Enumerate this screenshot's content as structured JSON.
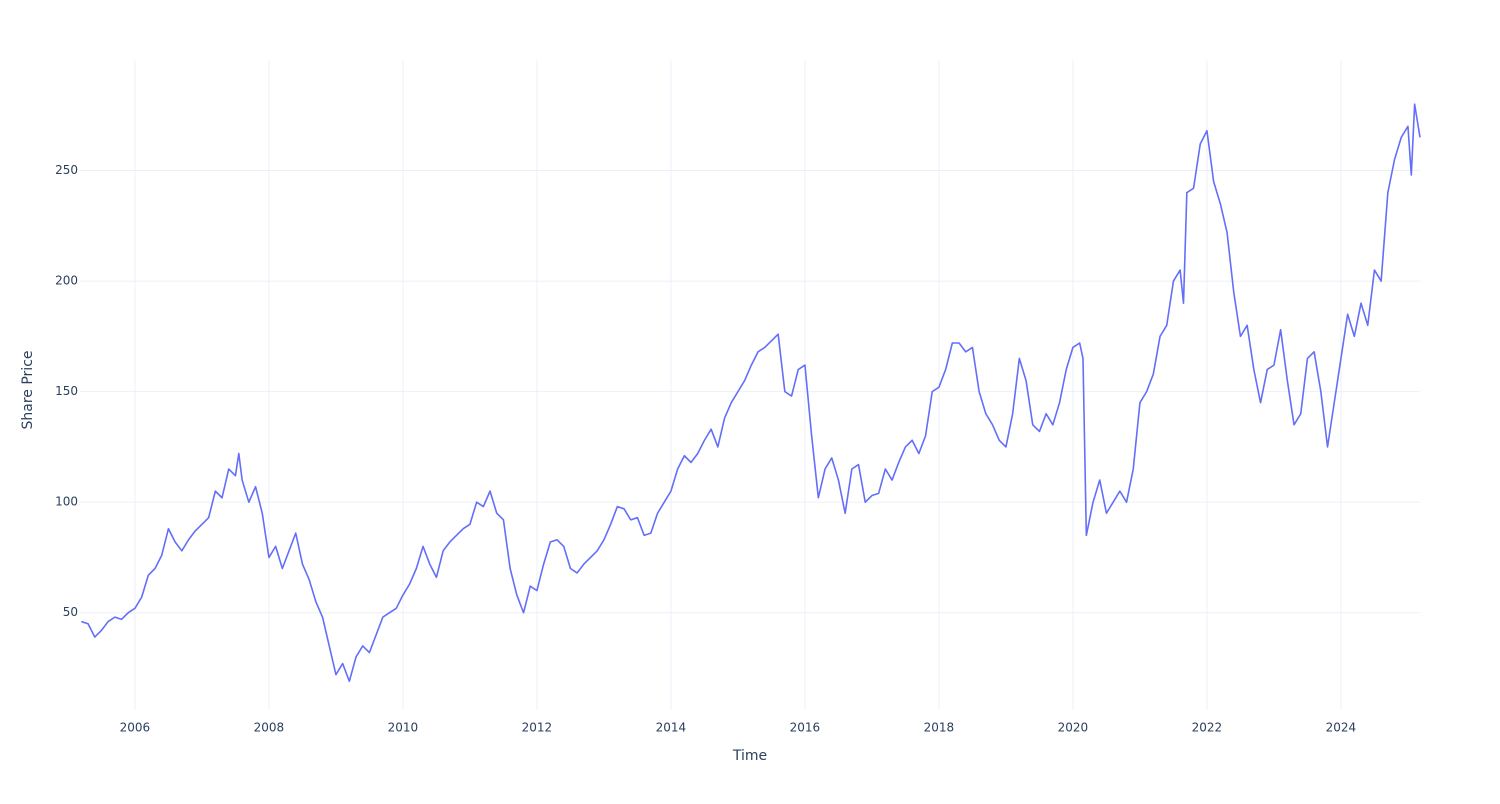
{
  "chart_data": {
    "type": "line",
    "x_label": "Time",
    "y_label": "Share Price",
    "series": [
      {
        "color": "#636efa",
        "x": [
          2005.2,
          2005.3,
          2005.4,
          2005.5,
          2005.6,
          2005.7,
          2005.8,
          2005.9,
          2006.0,
          2006.1,
          2006.2,
          2006.3,
          2006.4,
          2006.5,
          2006.6,
          2006.7,
          2006.8,
          2006.9,
          2007.0,
          2007.1,
          2007.2,
          2007.3,
          2007.4,
          2007.5,
          2007.55,
          2007.6,
          2007.7,
          2007.8,
          2007.9,
          2008.0,
          2008.1,
          2008.2,
          2008.3,
          2008.4,
          2008.5,
          2008.6,
          2008.7,
          2008.8,
          2008.9,
          2009.0,
          2009.1,
          2009.2,
          2009.3,
          2009.4,
          2009.5,
          2009.6,
          2009.7,
          2009.8,
          2009.9,
          2010.0,
          2010.1,
          2010.2,
          2010.3,
          2010.4,
          2010.5,
          2010.6,
          2010.7,
          2010.8,
          2010.9,
          2011.0,
          2011.1,
          2011.2,
          2011.3,
          2011.4,
          2011.5,
          2011.6,
          2011.7,
          2011.8,
          2011.9,
          2012.0,
          2012.1,
          2012.2,
          2012.3,
          2012.4,
          2012.5,
          2012.6,
          2012.7,
          2012.8,
          2012.9,
          2013.0,
          2013.1,
          2013.2,
          2013.3,
          2013.4,
          2013.5,
          2013.6,
          2013.7,
          2013.8,
          2013.9,
          2014.0,
          2014.1,
          2014.2,
          2014.3,
          2014.4,
          2014.5,
          2014.6,
          2014.7,
          2014.8,
          2014.9,
          2015.0,
          2015.1,
          2015.2,
          2015.3,
          2015.4,
          2015.5,
          2015.6,
          2015.7,
          2015.8,
          2015.9,
          2016.0,
          2016.1,
          2016.2,
          2016.3,
          2016.4,
          2016.5,
          2016.6,
          2016.7,
          2016.8,
          2016.9,
          2017.0,
          2017.1,
          2017.2,
          2017.3,
          2017.4,
          2017.5,
          2017.6,
          2017.7,
          2017.8,
          2017.9,
          2018.0,
          2018.1,
          2018.2,
          2018.3,
          2018.4,
          2018.5,
          2018.6,
          2018.7,
          2018.8,
          2018.9,
          2019.0,
          2019.1,
          2019.2,
          2019.3,
          2019.4,
          2019.5,
          2019.6,
          2019.7,
          2019.8,
          2019.9,
          2020.0,
          2020.1,
          2020.15,
          2020.2,
          2020.3,
          2020.4,
          2020.5,
          2020.6,
          2020.7,
          2020.8,
          2020.9,
          2021.0,
          2021.1,
          2021.2,
          2021.3,
          2021.4,
          2021.5,
          2021.6,
          2021.65,
          2021.7,
          2021.8,
          2021.9,
          2022.0,
          2022.1,
          2022.2,
          2022.3,
          2022.4,
          2022.5,
          2022.6,
          2022.7,
          2022.8,
          2022.9,
          2023.0,
          2023.1,
          2023.2,
          2023.3,
          2023.4,
          2023.5,
          2023.6,
          2023.7,
          2023.8,
          2023.9,
          2024.0,
          2024.1,
          2024.2,
          2024.3,
          2024.4,
          2024.5,
          2024.6,
          2024.7,
          2024.8,
          2024.9,
          2025.0,
          2025.05,
          2025.1,
          2025.18
        ],
        "values": [
          46,
          45,
          39,
          42,
          46,
          48,
          47,
          50,
          52,
          57,
          67,
          70,
          76,
          88,
          82,
          78,
          83,
          87,
          90,
          93,
          105,
          102,
          115,
          112,
          122,
          110,
          100,
          107,
          95,
          75,
          80,
          70,
          78,
          86,
          72,
          65,
          55,
          48,
          35,
          22,
          27,
          19,
          30,
          35,
          32,
          40,
          48,
          50,
          52,
          58,
          63,
          70,
          80,
          72,
          66,
          78,
          82,
          85,
          88,
          90,
          100,
          98,
          105,
          95,
          92,
          70,
          58,
          50,
          62,
          60,
          72,
          82,
          83,
          80,
          70,
          68,
          72,
          75,
          78,
          83,
          90,
          98,
          97,
          92,
          93,
          85,
          86,
          95,
          100,
          105,
          115,
          121,
          118,
          122,
          128,
          133,
          125,
          138,
          145,
          150,
          155,
          162,
          168,
          170,
          173,
          176,
          150,
          148,
          160,
          162,
          130,
          102,
          115,
          120,
          110,
          95,
          115,
          117,
          100,
          103,
          104,
          115,
          110,
          118,
          125,
          128,
          122,
          130,
          150,
          152,
          160,
          172,
          172,
          168,
          170,
          150,
          140,
          135,
          128,
          125,
          140,
          165,
          155,
          135,
          132,
          140,
          135,
          145,
          160,
          170,
          172,
          165,
          85,
          100,
          110,
          95,
          100,
          105,
          100,
          115,
          145,
          150,
          158,
          175,
          180,
          200,
          205,
          190,
          240,
          242,
          262,
          268,
          245,
          235,
          222,
          195,
          175,
          180,
          160,
          145,
          160,
          162,
          178,
          155,
          135,
          140,
          165,
          168,
          150,
          125,
          145,
          165,
          185,
          175,
          190,
          180,
          205,
          200,
          240,
          255,
          265,
          270,
          248,
          280,
          265
        ]
      }
    ],
    "xlim": [
      2005.18,
      2025.18
    ],
    "xticks": [
      2006,
      2008,
      2010,
      2012,
      2014,
      2016,
      2018,
      2020,
      2022,
      2024
    ],
    "ylim": [
      6,
      300
    ],
    "yticks": [
      50,
      100,
      150,
      200,
      250
    ],
    "grid": true
  }
}
